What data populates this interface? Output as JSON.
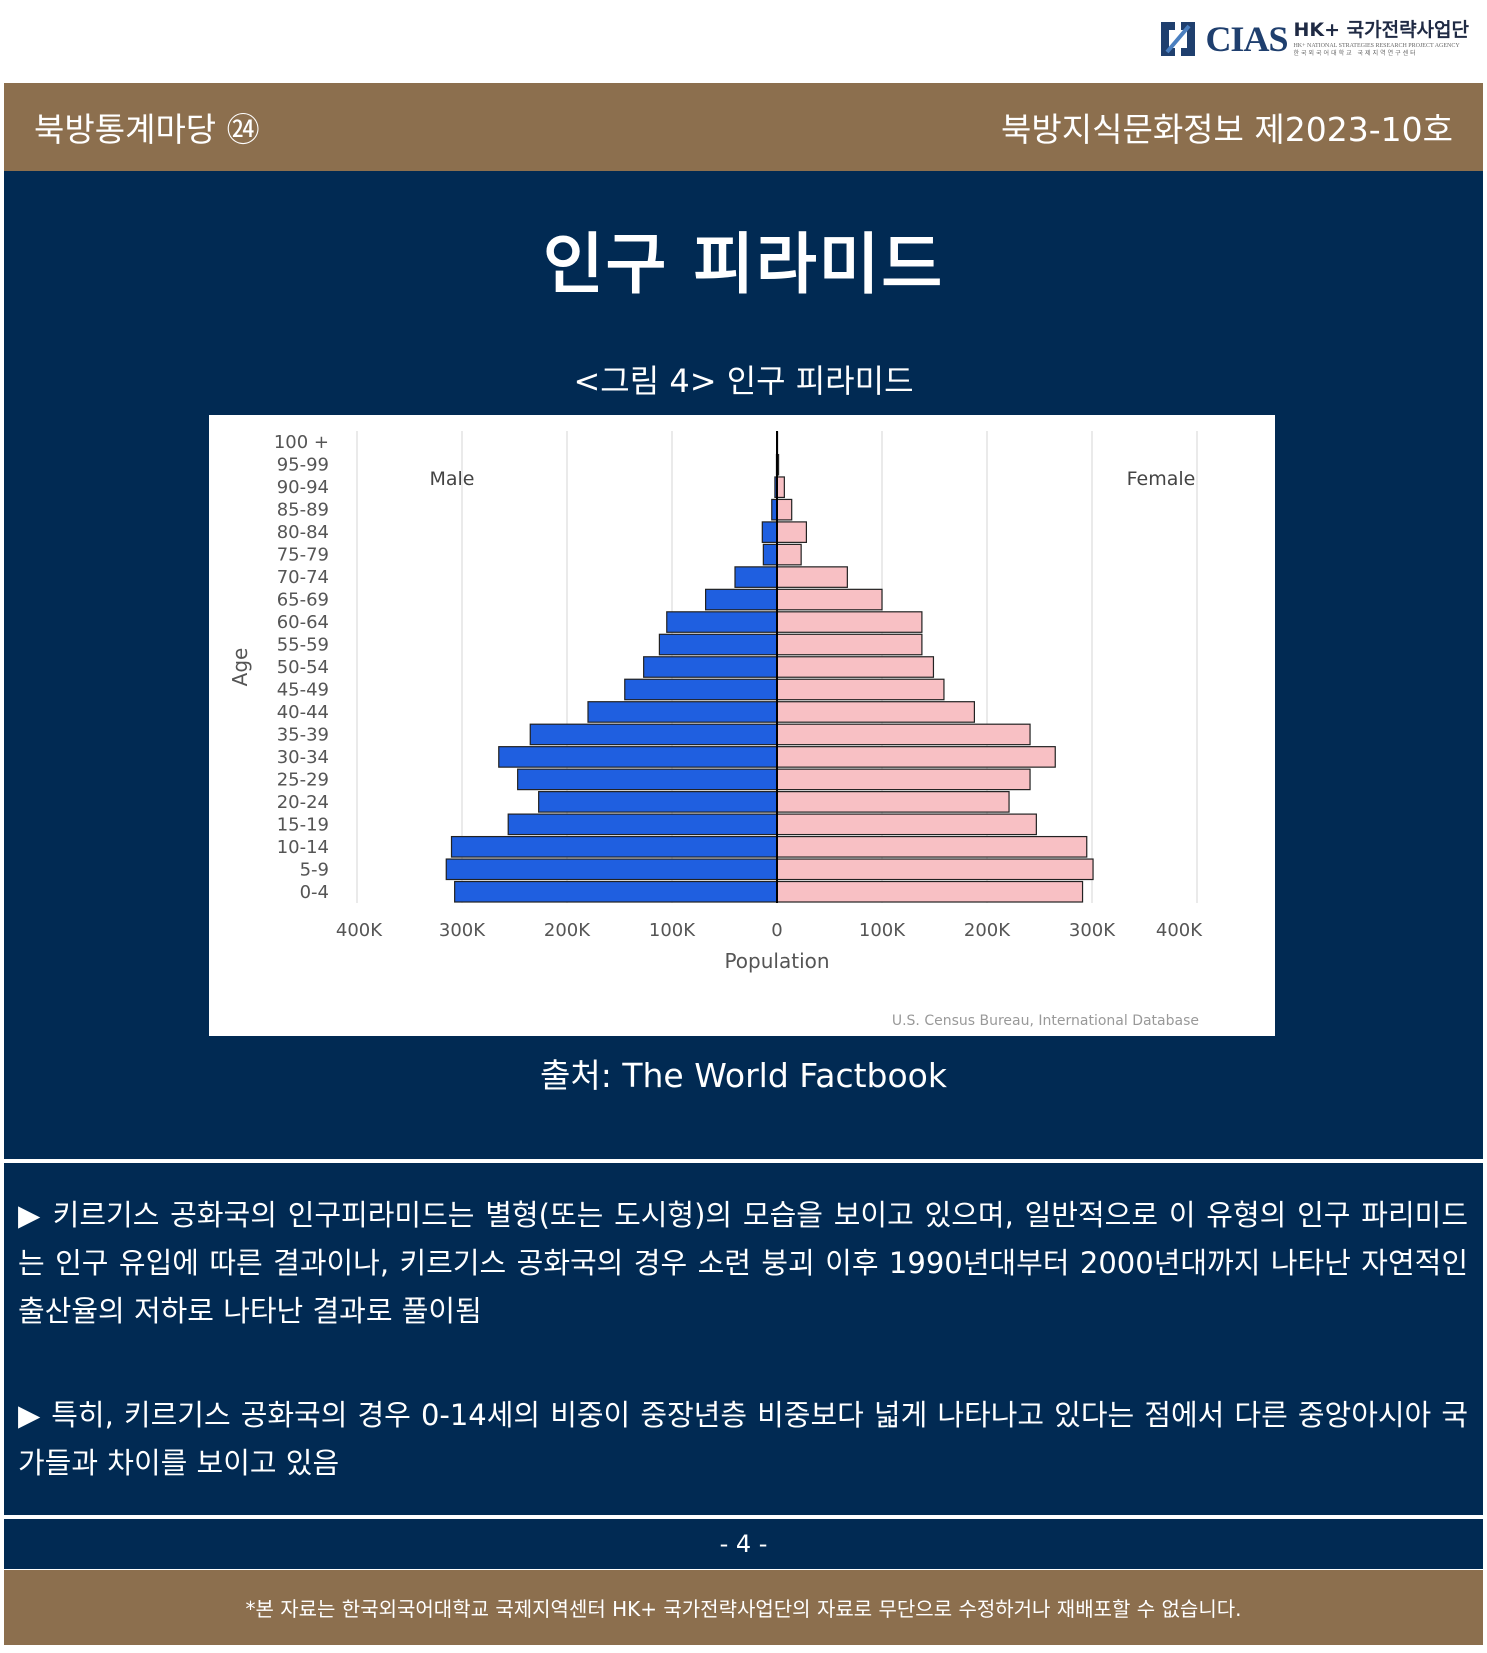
{
  "header": {
    "logo": {
      "cias": "CIAS",
      "hk": "HK+ 국가전략사업단",
      "sub_en": "HK+ NATIONAL STRATEGIES RESEARCH PROJECT AGENCY",
      "sub_ko": "한국외국어대학교 국제지역연구센터"
    },
    "series_label": "북방통계마당 ㉔",
    "issue_label": "북방지식문화정보 제2023-10호"
  },
  "main": {
    "title": "인구 피라미드",
    "figure_caption": "<그림 4> 인구 피라미드",
    "source": "출처: The World Factbook"
  },
  "chart_data": {
    "type": "bar",
    "orientation": "horizontal-population-pyramid",
    "categories": [
      "0-4",
      "5-9",
      "10-14",
      "15-19",
      "20-24",
      "25-29",
      "30-34",
      "35-39",
      "40-44",
      "45-49",
      "50-54",
      "55-59",
      "60-64",
      "65-69",
      "70-74",
      "75-79",
      "80-84",
      "85-89",
      "90-94",
      "95-99",
      "100 +"
    ],
    "series": [
      {
        "name": "Male",
        "color": "#1f5fe0",
        "values": [
          307000,
          315000,
          310000,
          256000,
          227000,
          247000,
          265000,
          235000,
          180000,
          145000,
          127000,
          112000,
          105000,
          68000,
          40000,
          13000,
          14000,
          5000,
          2000,
          500,
          200
        ]
      },
      {
        "name": "Female",
        "color": "#f8c0c4",
        "values": [
          291000,
          301000,
          295000,
          247000,
          221000,
          241000,
          265000,
          241000,
          188000,
          159000,
          149000,
          138000,
          138000,
          100000,
          67000,
          23000,
          28000,
          14000,
          7000,
          1500,
          500
        ]
      }
    ],
    "xlabel": "Population",
    "ylabel": "Age",
    "xlim": [
      -400000,
      400000
    ],
    "x_tick_labels": [
      "400K",
      "300K",
      "200K",
      "100K",
      "0",
      "100K",
      "200K",
      "300K",
      "400K"
    ],
    "legend": [
      "Male",
      "Female"
    ],
    "annotation": "U.S. Census Bureau, International Database",
    "grid": "vertical"
  },
  "body": {
    "paragraph1": "▶ 키르기스 공화국의 인구피라미드는 별형(또는 도시형)의 모습을 보이고 있으며, 일반적으로 이 유형의 인구 파리미드는 인구 유입에 따른 결과이나, 키르기스 공화국의 경우 소련 붕괴 이후 1990년대부터 2000년대까지 나타난 자연적인 출산율의 저하로 나타난 결과로 풀이됨",
    "paragraph2": "▶ 특히, 키르기스 공화국의 경우 0-14세의 비중이 중장년층 비중보다 넓게 나타나고 있다는 점에서 다른 중앙아시아 국가들과 차이를 보이고 있음"
  },
  "footer": {
    "page_number": "- 4 -",
    "notice": "*본 자료는 한국외국어대학교 국제지역센터 HK+ 국가전략사업단의 자료로 무단으로 수정하거나 재배포할 수 없습니다."
  },
  "colors": {
    "navy": "#012a53",
    "brown": "#8c6f4e",
    "male": "#1f5fe0",
    "female": "#f8c0c4"
  }
}
